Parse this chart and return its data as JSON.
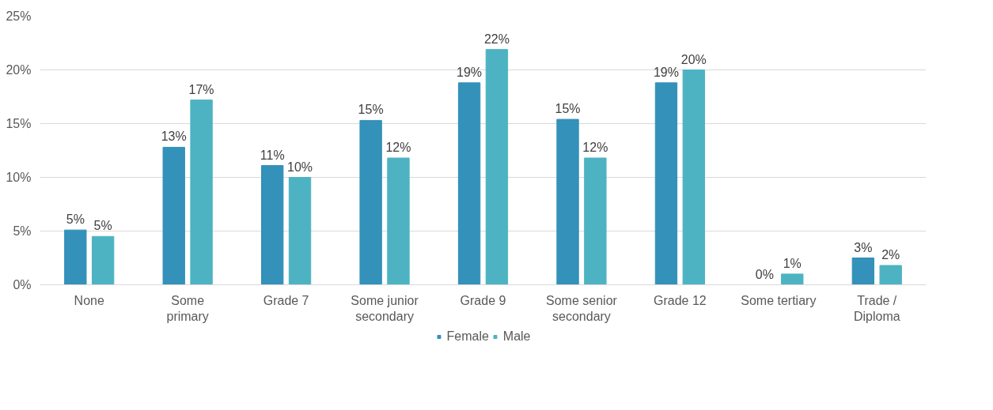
{
  "chart_data": {
    "type": "bar",
    "categories": [
      "None",
      "Some\nprimary",
      "Grade 7",
      "Some junior\nsecondary",
      "Grade 9",
      "Some senior\nsecondary",
      "Grade 12",
      "Some tertiary",
      "Trade /\nDiploma"
    ],
    "series": [
      {
        "name": "Female",
        "color": "#3391ba",
        "values": [
          5.1,
          12.8,
          11.1,
          15.3,
          18.8,
          15.4,
          18.8,
          0,
          2.5
        ],
        "value_labels": [
          "5%",
          "13%",
          "11%",
          "15%",
          "19%",
          "15%",
          "19%",
          "0%",
          "3%"
        ]
      },
      {
        "name": "Male",
        "color": "#4db3c2",
        "values": [
          4.5,
          17.2,
          10.0,
          11.8,
          21.9,
          11.8,
          20.0,
          1.0,
          1.8
        ],
        "value_labels": [
          "5%",
          "17%",
          "10%",
          "12%",
          "22%",
          "12%",
          "20%",
          "1%",
          "2%"
        ]
      }
    ],
    "ylim": [
      0,
      25
    ],
    "yticks": [
      {
        "value": 0,
        "label": "0%"
      },
      {
        "value": 5,
        "label": "5%"
      },
      {
        "value": 10,
        "label": "10%"
      },
      {
        "value": 15,
        "label": "15%"
      },
      {
        "value": 20,
        "label": "20%"
      },
      {
        "value": 25,
        "label": "25%"
      }
    ],
    "grid": "y",
    "legend": "bottom"
  }
}
